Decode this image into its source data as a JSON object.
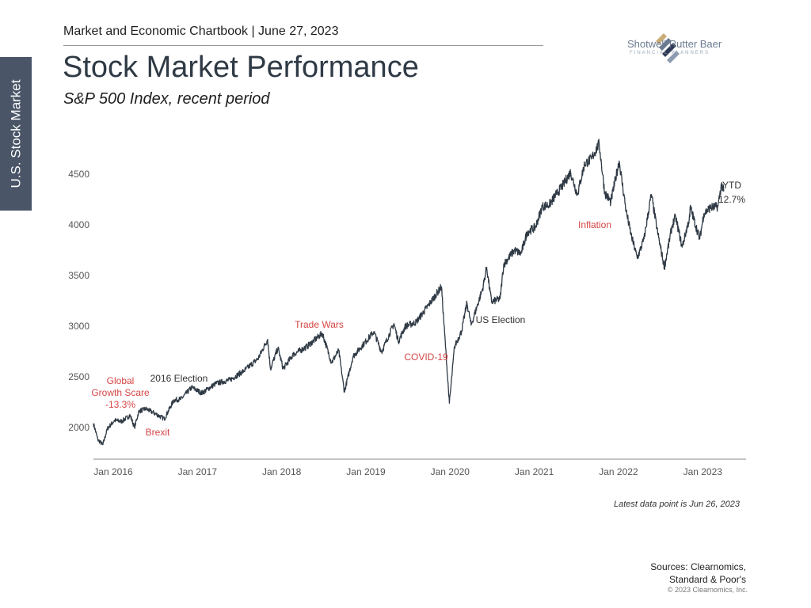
{
  "side_tab": {
    "label": "U.S. Stock Market"
  },
  "header": {
    "chartbook": "Market and Economic Chartbook | June 27, 2023",
    "title": "Stock Market Performance",
    "subtitle": "S&P 500 Index, recent period"
  },
  "logo": {
    "name": "Shotwell Rutter Baer",
    "tagline": "FINANCIAL PLANNERS",
    "colors": [
      "#c9ad77",
      "#6b7a90",
      "#2f3a56"
    ]
  },
  "footer": {
    "latest_note": "Latest data point is Jun 26, 2023",
    "sources_line1": "Sources: Clearnomics,",
    "sources_line2": "Standard & Poor's",
    "copyright": "© 2023 Clearnomics, Inc."
  },
  "colors": {
    "line": "#2f3a45",
    "annotation_red": "#d64545",
    "annotation_dark": "#333333",
    "axis": "#555555"
  },
  "chart_data": {
    "type": "line",
    "series": [
      {
        "x": [
          "2016-01-01",
          "2016-01-20",
          "2016-02-11",
          "2016-03-01",
          "2016-04-01",
          "2016-05-01",
          "2016-06-08",
          "2016-06-27",
          "2016-07-15",
          "2016-08-15",
          "2016-09-15",
          "2016-11-04",
          "2016-12-15",
          "2017-01-15",
          "2017-03-01",
          "2017-04-15",
          "2017-06-15",
          "2017-08-15",
          "2017-10-15",
          "2017-12-15",
          "2018-01-26",
          "2018-02-08",
          "2018-03-10",
          "2018-04-02",
          "2018-05-15",
          "2018-07-15",
          "2018-09-20",
          "2018-10-29",
          "2018-11-30",
          "2018-12-24",
          "2019-01-31",
          "2019-03-15",
          "2019-04-30",
          "2019-06-03",
          "2019-07-26",
          "2019-08-15",
          "2019-09-15",
          "2019-10-31",
          "2019-12-31",
          "2020-02-19",
          "2020-03-23",
          "2020-04-15",
          "2020-05-15",
          "2020-06-08",
          "2020-06-26",
          "2020-08-15",
          "2020-09-02",
          "2020-09-23",
          "2020-10-30",
          "2020-11-15",
          "2020-12-31",
          "2021-01-29",
          "2021-02-26",
          "2021-03-31",
          "2021-04-30",
          "2021-05-31",
          "2021-06-30",
          "2021-07-31",
          "2021-08-31",
          "2021-09-30",
          "2021-10-31",
          "2021-11-30",
          "2022-01-03",
          "2022-01-27",
          "2022-02-23",
          "2022-03-29",
          "2022-04-29",
          "2022-05-20",
          "2022-06-16",
          "2022-07-15",
          "2022-08-16",
          "2022-09-15",
          "2022-10-12",
          "2022-11-15",
          "2022-11-30",
          "2022-12-28",
          "2023-01-31",
          "2023-02-02",
          "2023-03-13",
          "2023-03-31",
          "2023-04-28",
          "2023-05-31",
          "2023-06-16",
          "2023-06-26"
        ],
        "y": [
          2040,
          1880,
          1830,
          1990,
          2070,
          2060,
          2120,
          2000,
          2160,
          2185,
          2150,
          2085,
          2270,
          2280,
          2395,
          2340,
          2435,
          2470,
          2560,
          2680,
          2870,
          2580,
          2785,
          2580,
          2720,
          2800,
          2930,
          2640,
          2760,
          2350,
          2700,
          2820,
          2945,
          2745,
          3025,
          2850,
          3000,
          3040,
          3230,
          3390,
          2240,
          2800,
          2950,
          3230,
          3010,
          3370,
          3580,
          3240,
          3270,
          3610,
          3750,
          3715,
          3930,
          3975,
          4180,
          4200,
          4300,
          4400,
          4520,
          4300,
          4600,
          4650,
          4800,
          4320,
          4225,
          4630,
          4130,
          3900,
          3670,
          3860,
          4300,
          3900,
          3580,
          3990,
          4080,
          3780,
          4080,
          4180,
          3860,
          4110,
          4170,
          4180,
          4400,
          4330
        ],
        "ytd_label": "YTD",
        "ytd_value": "12.7%"
      }
    ],
    "y_ticks": [
      "2000",
      "2500",
      "3000",
      "3500",
      "4000",
      "4500"
    ],
    "x_ticks": [
      "Jan 2016",
      "Jan 2017",
      "Jan 2018",
      "Jan 2019",
      "Jan 2020",
      "Jan 2021",
      "Jan 2022",
      "Jan 2023"
    ],
    "ylim": [
      1800,
      4900
    ],
    "annotations": [
      {
        "lines": [
          "Global",
          "Growth Scare",
          "-13.3%"
        ],
        "color": "red",
        "anchor": "2016-02"
      },
      {
        "lines": [
          "2016 Election"
        ],
        "color": "dark",
        "anchor": "2016-11"
      },
      {
        "lines": [
          "Brexit"
        ],
        "color": "red",
        "anchor": "2016-06"
      },
      {
        "lines": [
          "Trade Wars"
        ],
        "color": "red",
        "anchor": "2018-09"
      },
      {
        "lines": [
          "COVID-19"
        ],
        "color": "red",
        "anchor": "2020-03"
      },
      {
        "lines": [
          "US Election"
        ],
        "color": "dark",
        "anchor": "2020-11"
      },
      {
        "lines": [
          "Inflation"
        ],
        "color": "red",
        "anchor": "2022-06"
      }
    ]
  }
}
